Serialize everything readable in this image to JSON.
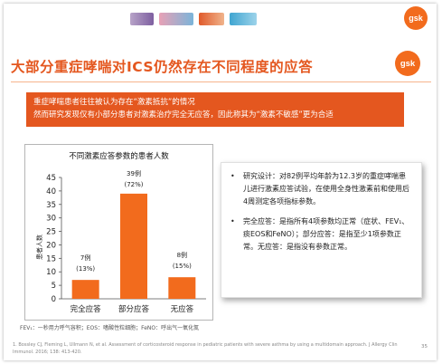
{
  "header": {
    "gsk_logo": "gsk"
  },
  "slide": {
    "title": "大部分重症哮喘对ICS仍然存在不同程度的应答",
    "banner_line_1": "重症哮喘患者往往被认为存在“激素抵抗”的情况",
    "banner_line_2": "然而研究发现仅有小部分患者对激素治疗完全无应答，因此称其为“激素不敏感”更为合适",
    "info": [
      {
        "bullet": "•",
        "text": "研究设计：对82例平均年龄为12.3岁的重症哮喘患儿进行激素应答试验，在使用全身性激素前和使用后4周测定各项指标参数。"
      },
      {
        "bullet": "•",
        "text": "完全应答：是指所有4项参数均正常（症状、FEV₁、痰EOS和FeNO）；部分应答：是指至少1项参数正常。无应答：是指没有参数正常。"
      }
    ],
    "footnote_abbr": "FEV₁：一秒用力呼气容积；EOS：嗜酸性粒细胞；FeNO：呼出气一氧化氮",
    "footnote_ref": "1. Bossley CJ, Fleming L, Ullmann N, et al. Assessment of corticosteroid response in pediatric patients with severe asthma by using a multidomain approach. J Allergy Clin Immunol. 2016; 138: 413-420.",
    "page_number": "35"
  },
  "chart_data": {
    "type": "bar",
    "title": "不同激素应答参数的患者人数",
    "ylabel": "患者人数",
    "categories": [
      "完全应答",
      "部分应答",
      "无应答"
    ],
    "values": [
      7,
      39,
      8
    ],
    "labels_count": [
      "7例",
      "39例",
      "8例"
    ],
    "labels_pct": [
      "(13%)",
      "(72%)",
      "(15%)"
    ],
    "yticks": [
      0,
      5,
      10,
      15,
      20,
      25,
      30,
      35,
      40,
      45
    ],
    "ylim": [
      0,
      45
    ],
    "grid": false,
    "bar_color": "#f26b1d"
  }
}
